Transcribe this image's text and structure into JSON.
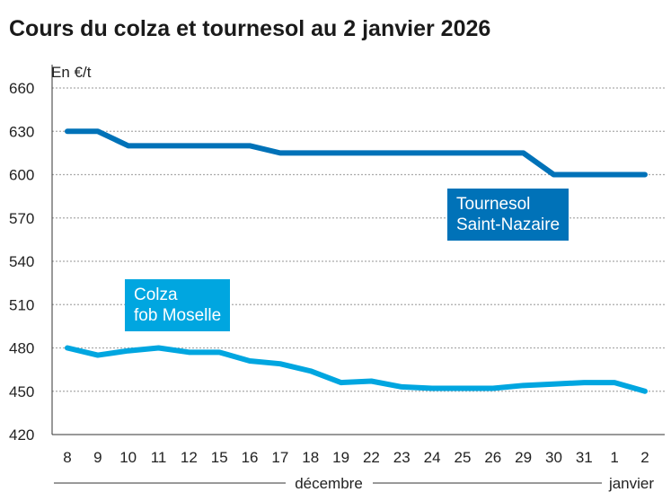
{
  "chart_data": {
    "type": "line",
    "title": "Cours du colza et tournesol au 2 janvier 2026",
    "ylabel": "En €/t",
    "ylim": [
      420,
      660
    ],
    "yticks": [
      420,
      450,
      480,
      510,
      540,
      570,
      600,
      630,
      660
    ],
    "grid": true,
    "categories": [
      "8",
      "9",
      "10",
      "11",
      "12",
      "15",
      "16",
      "17",
      "18",
      "19",
      "22",
      "23",
      "24",
      "25",
      "26",
      "29",
      "30",
      "31",
      "1",
      "2"
    ],
    "month_labels": [
      "décembre",
      "janvier"
    ],
    "series": [
      {
        "name": "Tournesol Saint-Nazaire",
        "label_lines": [
          "Tournesol",
          "Saint-Nazaire"
        ],
        "color": "#0072b8",
        "values": [
          630,
          630,
          620,
          620,
          620,
          620,
          620,
          615,
          615,
          615,
          615,
          615,
          615,
          615,
          615,
          615,
          600,
          600,
          600,
          600
        ]
      },
      {
        "name": "Colza fob Moselle",
        "label_lines": [
          "Colza",
          "fob Moselle"
        ],
        "color": "#00a6e0",
        "values": [
          480,
          475,
          478,
          480,
          477,
          477,
          471,
          469,
          464,
          456,
          457,
          453,
          452,
          452,
          452,
          454,
          455,
          456,
          456,
          450
        ]
      }
    ]
  }
}
